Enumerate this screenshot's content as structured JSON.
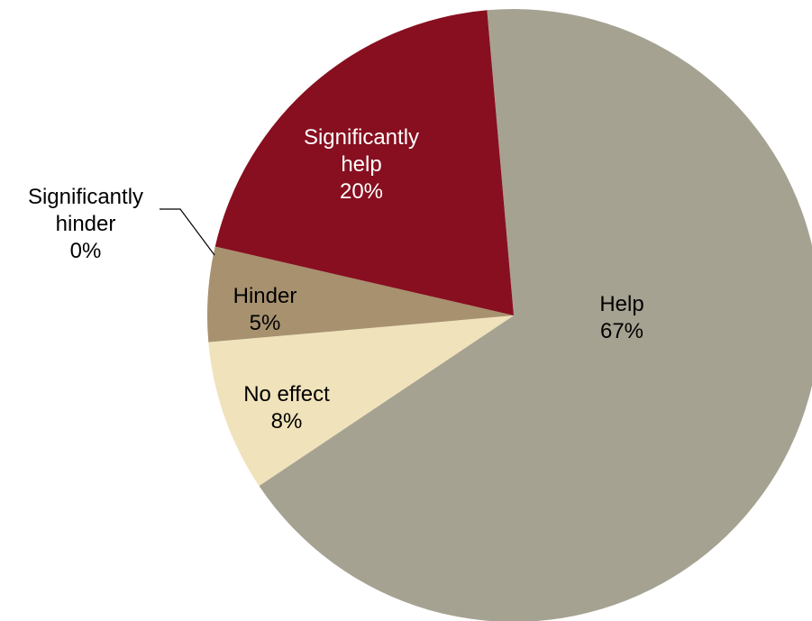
{
  "chart_data": {
    "type": "pie",
    "title": "",
    "slices": [
      {
        "label": "Help",
        "value": 67,
        "display": "67%",
        "color": "#A6A292",
        "label_color": "#000000"
      },
      {
        "label": "No effect",
        "value": 8,
        "display": "8%",
        "color": "#F0E2BA",
        "label_color": "#000000"
      },
      {
        "label": "Hinder",
        "value": 5,
        "display": "5%",
        "color": "#A7916F",
        "label_color": "#000000"
      },
      {
        "label": "Significantly hinder",
        "value": 0,
        "display": "0%",
        "color": "#5A3D2B",
        "label_color": "#000000"
      },
      {
        "label": "Significantly help",
        "value": 20,
        "display": "20%",
        "color": "#870F1F",
        "label_color": "#FFFFFF"
      }
    ]
  }
}
